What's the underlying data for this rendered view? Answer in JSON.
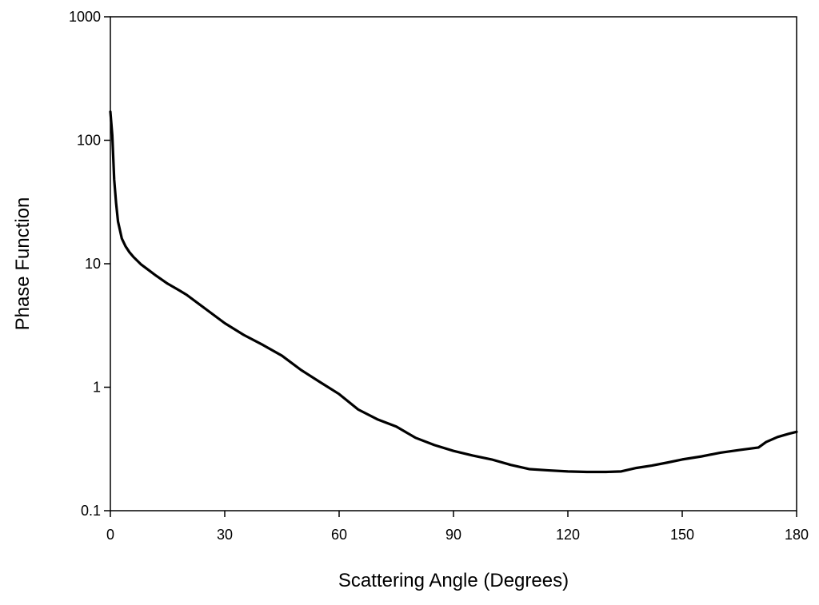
{
  "chart_data": {
    "type": "line",
    "title": "",
    "xlabel": "Scattering Angle (Degrees)",
    "ylabel": "Phase Function",
    "xlim": [
      0,
      180
    ],
    "ylim": [
      0.1,
      1000
    ],
    "yscale": "log",
    "grid": false,
    "x_ticks": [
      0,
      30,
      60,
      90,
      120,
      150,
      180
    ],
    "x_tick_labels": [
      "0",
      "30",
      "60",
      "90",
      "120",
      "150",
      "180"
    ],
    "y_ticks": [
      0.1,
      1,
      10,
      100,
      1000
    ],
    "y_tick_labels": [
      "0.1",
      "1",
      "10",
      "100",
      "1000"
    ],
    "series": [
      {
        "color": "#000000",
        "x": [
          0,
          0.5,
          1,
          1.5,
          2,
          3,
          4,
          5,
          6,
          8,
          10,
          12,
          15,
          18,
          20,
          25,
          30,
          35,
          40,
          45,
          50,
          55,
          60,
          65,
          70,
          75,
          80,
          85,
          90,
          95,
          100,
          105,
          110,
          115,
          120,
          125,
          130,
          134,
          138,
          142,
          146,
          150,
          155,
          160,
          165,
          170,
          172,
          175,
          178,
          180
        ],
        "y": [
          170,
          110,
          48,
          31,
          22,
          16,
          13.8,
          12.4,
          11.4,
          9.9,
          8.9,
          8.0,
          6.9,
          6.1,
          5.6,
          4.3,
          3.3,
          2.65,
          2.2,
          1.8,
          1.38,
          1.1,
          0.88,
          0.66,
          0.55,
          0.48,
          0.39,
          0.34,
          0.305,
          0.28,
          0.26,
          0.235,
          0.217,
          0.212,
          0.208,
          0.206,
          0.206,
          0.208,
          0.222,
          0.232,
          0.245,
          0.26,
          0.275,
          0.295,
          0.31,
          0.325,
          0.36,
          0.395,
          0.42,
          0.435
        ]
      }
    ]
  }
}
